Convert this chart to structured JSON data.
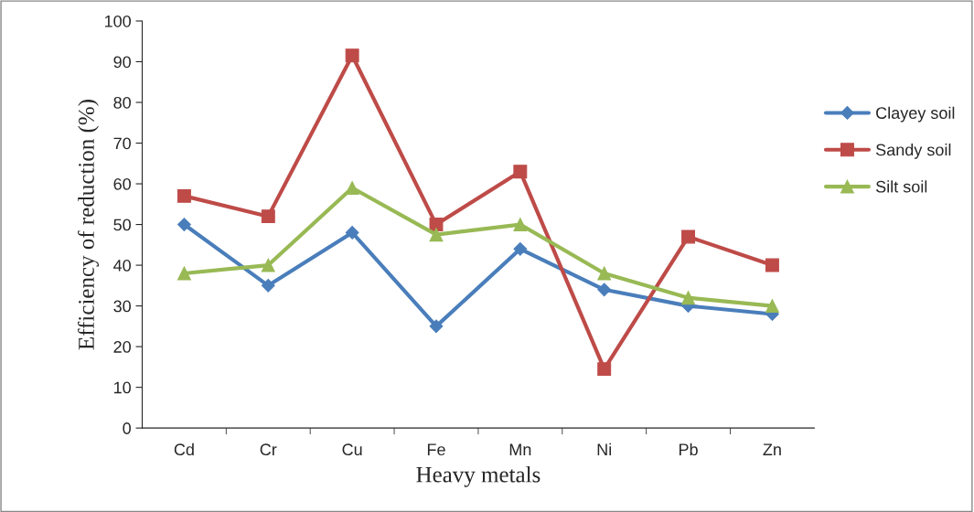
{
  "chart_data": {
    "type": "line",
    "xlabel": "Heavy metals",
    "ylabel": "Efficiency of reduction (%)",
    "categories": [
      "Cd",
      "Cr",
      "Cu",
      "Fe",
      "Mn",
      "Ni",
      "Pb",
      "Zn"
    ],
    "series": [
      {
        "name": "Clayey soil",
        "color": "#4a7ebb",
        "marker": "diamond",
        "values": [
          50,
          35,
          48,
          25,
          44,
          34,
          30,
          28
        ]
      },
      {
        "name": "Sandy soil",
        "color": "#be4b48",
        "marker": "square",
        "values": [
          57,
          52,
          91.5,
          50,
          63,
          14.5,
          47,
          40
        ]
      },
      {
        "name": "Silt soil",
        "color": "#98b954",
        "marker": "triangle",
        "values": [
          38,
          40,
          59,
          47.5,
          50,
          38,
          32,
          30
        ]
      }
    ],
    "ylim": [
      0,
      100
    ],
    "yticks": [
      0,
      10,
      20,
      30,
      40,
      50,
      60,
      70,
      80,
      90,
      100
    ],
    "grid": false,
    "legend": "right",
    "line_style": "solid"
  }
}
